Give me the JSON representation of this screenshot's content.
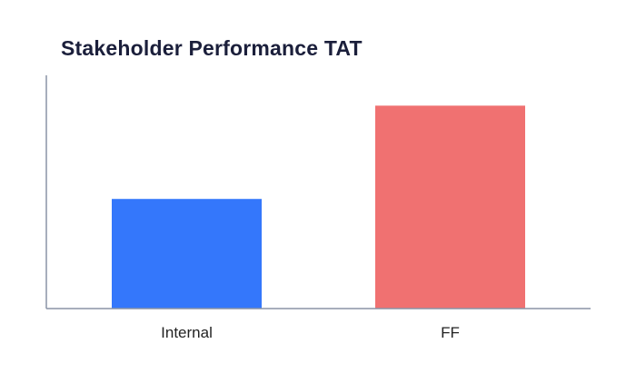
{
  "chart_data": {
    "type": "bar",
    "title": "Stakeholder Performance TAT",
    "categories": [
      "Internal",
      "FF"
    ],
    "values": [
      0.47,
      0.87
    ],
    "colors": [
      "#3477fb",
      "#f07171"
    ],
    "xlabel": "",
    "ylabel": "",
    "ylim": [
      0,
      1
    ],
    "y_tick_labels_shown": false,
    "grid": false,
    "legend": "none"
  }
}
